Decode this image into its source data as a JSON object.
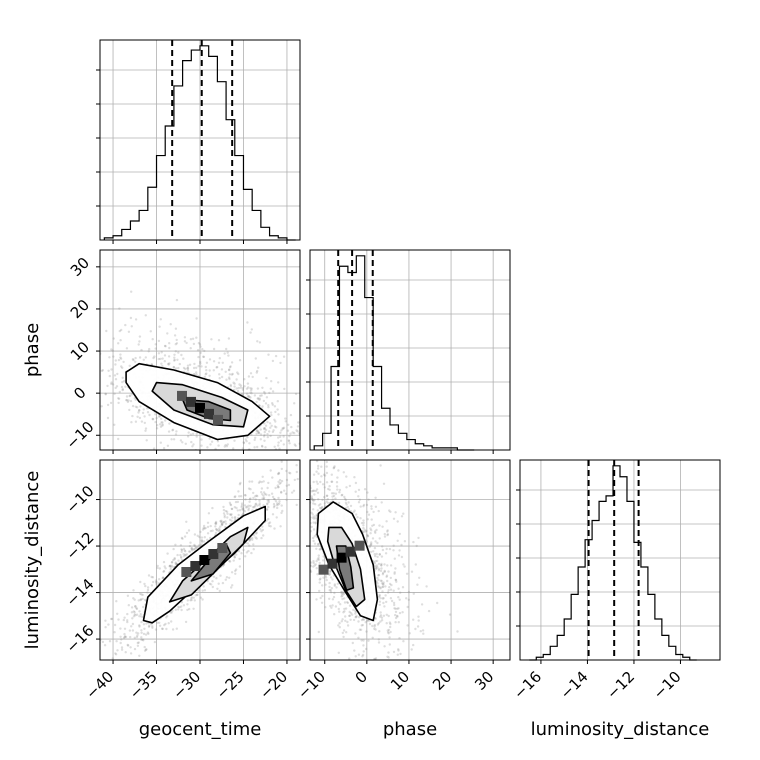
{
  "chart_data": {
    "type": "corner",
    "parameters": [
      "geocent_time",
      "phase",
      "luminosity_distance"
    ],
    "axis_labels": {
      "x": [
        "geocent_time",
        "phase",
        "luminosity_distance"
      ],
      "y": [
        "phase",
        "luminosity_distance"
      ]
    },
    "ranges": {
      "geocent_time": [
        -41.5,
        -18.5
      ],
      "phase": [
        -13.5,
        34.0
      ],
      "luminosity_distance": [
        -16.9,
        -8.3
      ]
    },
    "ticks": {
      "geocent_time": [
        "-40",
        "-35",
        "-30",
        "-25",
        "-20"
      ],
      "phase": [
        "-10",
        "0",
        "10",
        "20",
        "30"
      ],
      "luminosity_distance": [
        "-16",
        "-14",
        "-12",
        "-10"
      ]
    },
    "tick_values": {
      "geocent_time": [
        -40,
        -35,
        -30,
        -25,
        -20
      ],
      "phase": [
        -10,
        0,
        10,
        20,
        30
      ],
      "luminosity_distance": [
        -16,
        -14,
        -12,
        -10
      ]
    },
    "quantiles": {
      "geocent_time": [
        -33.2,
        -29.8,
        -26.3
      ],
      "phase": [
        -6.8,
        -3.5,
        1.4
      ],
      "luminosity_distance": [
        -13.95,
        -12.85,
        -11.8
      ]
    },
    "histograms": {
      "geocent_time": {
        "edges": [
          -41.0,
          -40.0,
          -39.0,
          -38.0,
          -37.0,
          -36.0,
          -35.0,
          -34.0,
          -33.0,
          -32.0,
          -31.0,
          -30.0,
          -29.0,
          -28.0,
          -27.0,
          -26.0,
          -25.0,
          -24.0,
          -23.0,
          -22.0,
          -21.0,
          -20.0,
          -19.0
        ],
        "counts": [
          1,
          2,
          5,
          9,
          14,
          25,
          40,
          54,
          73,
          85,
          90,
          92,
          87,
          75,
          57,
          40,
          24,
          14,
          6,
          2,
          1,
          0
        ]
      },
      "phase": {
        "edges": [
          -12.5,
          -10.5,
          -8.5,
          -6.5,
          -4.5,
          -2.5,
          -0.5,
          1.5,
          3.5,
          5.5,
          7.5,
          9.5,
          11.5,
          13.5,
          15.5,
          17.5,
          19.5,
          21.5,
          23.5,
          25.5
        ],
        "counts": [
          2,
          8,
          40,
          88,
          85,
          93,
          73,
          40,
          20,
          12,
          8,
          5,
          3,
          2,
          1,
          1,
          1,
          0,
          0
        ]
      },
      "luminosity_distance": {
        "edges": [
          -16.5,
          -16.2,
          -15.9,
          -15.6,
          -15.3,
          -15.0,
          -14.7,
          -14.4,
          -14.1,
          -13.8,
          -13.5,
          -13.2,
          -12.9,
          -12.6,
          -12.3,
          -12.0,
          -11.7,
          -11.4,
          -11.1,
          -10.8,
          -10.5,
          -10.2,
          -9.9,
          -9.6,
          -9.3
        ],
        "counts": [
          0,
          1,
          2,
          5,
          9,
          15,
          24,
          34,
          44,
          51,
          58,
          60,
          71,
          67,
          58,
          43,
          34,
          24,
          15,
          9,
          5,
          2,
          1,
          0
        ]
      }
    },
    "pair_densities": [
      {
        "x": "geocent_time",
        "y": "phase",
        "peak": [
          -30.0,
          -3.5
        ],
        "contour_levels": [
          [
            [
              -38.5,
              5.0
            ],
            [
              -37.0,
              7.0
            ],
            [
              -33.0,
              5.5
            ],
            [
              -28.0,
              2.5
            ],
            [
              -24.0,
              -2.0
            ],
            [
              -22.0,
              -5.5
            ],
            [
              -24.5,
              -10.0
            ],
            [
              -28.0,
              -11.0
            ],
            [
              -33.0,
              -7.0
            ],
            [
              -37.0,
              -2.0
            ],
            [
              -38.5,
              2.5
            ]
          ],
          [
            [
              -35.0,
              2.5
            ],
            [
              -32.0,
              2.0
            ],
            [
              -27.5,
              -1.0
            ],
            [
              -24.5,
              -4.0
            ],
            [
              -25.0,
              -8.0
            ],
            [
              -28.5,
              -7.5
            ],
            [
              -33.0,
              -4.0
            ],
            [
              -35.5,
              0.5
            ]
          ],
          [
            [
              -32.0,
              -1.5
            ],
            [
              -29.0,
              -2.0
            ],
            [
              -26.5,
              -4.0
            ],
            [
              -26.5,
              -6.5
            ],
            [
              -29.0,
              -6.0
            ],
            [
              -31.5,
              -4.0
            ]
          ]
        ]
      },
      {
        "x": "geocent_time",
        "y": "luminosity_distance",
        "peak": [
          -29.5,
          -12.6
        ],
        "contour_levels": [
          [
            [
              -36.5,
              -15.2
            ],
            [
              -36.0,
              -14.2
            ],
            [
              -32.5,
              -12.8
            ],
            [
              -29.0,
              -11.8
            ],
            [
              -25.0,
              -10.7
            ],
            [
              -22.5,
              -10.3
            ],
            [
              -22.5,
              -10.9
            ],
            [
              -26.0,
              -12.3
            ],
            [
              -30.0,
              -13.6
            ],
            [
              -33.5,
              -14.8
            ],
            [
              -35.5,
              -15.3
            ]
          ],
          [
            [
              -33.5,
              -14.4
            ],
            [
              -32.0,
              -13.5
            ],
            [
              -29.0,
              -12.5
            ],
            [
              -26.5,
              -11.6
            ],
            [
              -24.5,
              -11.2
            ],
            [
              -25.0,
              -11.9
            ],
            [
              -28.0,
              -13.0
            ],
            [
              -31.0,
              -14.1
            ]
          ],
          [
            [
              -31.0,
              -13.5
            ],
            [
              -29.0,
              -12.6
            ],
            [
              -27.0,
              -11.9
            ],
            [
              -26.5,
              -12.3
            ],
            [
              -28.5,
              -13.2
            ]
          ]
        ]
      },
      {
        "x": "phase",
        "y": "luminosity_distance",
        "peak": [
          -6.0,
          -12.5
        ],
        "contour_levels": [
          [
            [
              -11.5,
              -10.6
            ],
            [
              -8.0,
              -10.1
            ],
            [
              -3.5,
              -10.6
            ],
            [
              -1.0,
              -11.5
            ],
            [
              1.5,
              -12.8
            ],
            [
              2.5,
              -14.3
            ],
            [
              1.5,
              -15.2
            ],
            [
              -1.5,
              -15.0
            ],
            [
              -5.0,
              -14.0
            ],
            [
              -9.0,
              -12.8
            ],
            [
              -11.8,
              -11.5
            ]
          ],
          [
            [
              -9.0,
              -11.2
            ],
            [
              -6.0,
              -11.2
            ],
            [
              -3.5,
              -11.9
            ],
            [
              -1.5,
              -13.0
            ],
            [
              -0.5,
              -14.3
            ],
            [
              -2.5,
              -14.6
            ],
            [
              -5.0,
              -13.9
            ],
            [
              -8.0,
              -12.6
            ],
            [
              -9.3,
              -11.8
            ]
          ],
          [
            [
              -7.2,
              -12.0
            ],
            [
              -5.0,
              -12.0
            ],
            [
              -3.8,
              -12.9
            ],
            [
              -3.2,
              -13.8
            ],
            [
              -4.8,
              -13.9
            ],
            [
              -6.5,
              -13.0
            ]
          ]
        ]
      }
    ]
  }
}
